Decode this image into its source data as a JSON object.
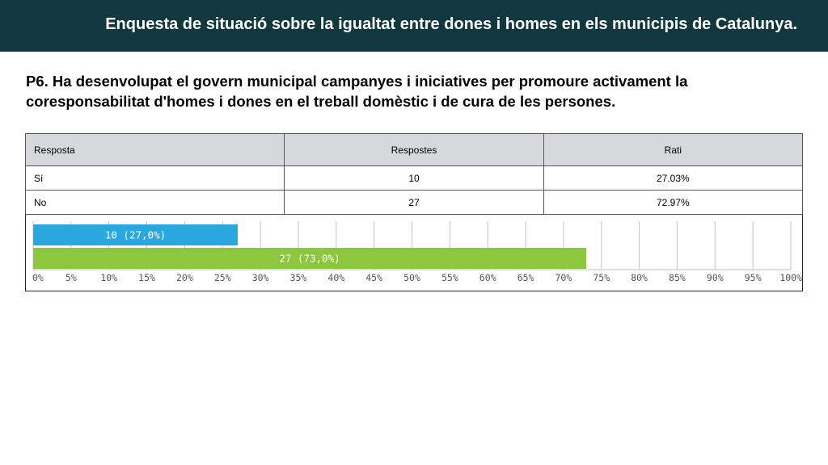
{
  "header": {
    "title": "Enquesta de situació sobre la  igualtat entre dones i homes en els municipis de Catalunya."
  },
  "question": {
    "line1": "P6. Ha desenvolupat el govern municipal campanyes i iniciatives per promoure activament la",
    "line2": "coresponsabilitat d'homes i dones en el treball domèstic i de cura de les persones."
  },
  "table": {
    "headers": [
      "Resposta",
      "Respostes",
      "Rati"
    ],
    "rows": [
      [
        "Sí",
        "10",
        "27.03%"
      ],
      [
        "No",
        "27",
        "72.97%"
      ]
    ]
  },
  "colors": {
    "banner": "#12383f",
    "bar_si": "#29a8e0",
    "bar_no": "#8dc63f",
    "header_bg": "#d6d8dc"
  },
  "chart_data": {
    "type": "bar",
    "orientation": "horizontal",
    "categories": [
      "Sí",
      "No"
    ],
    "values": [
      27.0,
      73.0
    ],
    "bar_labels": [
      "10 (27,0%)",
      "27 (73,0%)"
    ],
    "bar_colors": [
      "#29a8e0",
      "#8dc63f"
    ],
    "xlim": [
      0,
      100
    ],
    "xticks": [
      "0%",
      "5%",
      "10%",
      "15%",
      "20%",
      "25%",
      "30%",
      "35%",
      "40%",
      "45%",
      "50%",
      "55%",
      "60%",
      "65%",
      "70%",
      "75%",
      "80%",
      "85%",
      "90%",
      "95%",
      "100%"
    ],
    "grid": true
  }
}
